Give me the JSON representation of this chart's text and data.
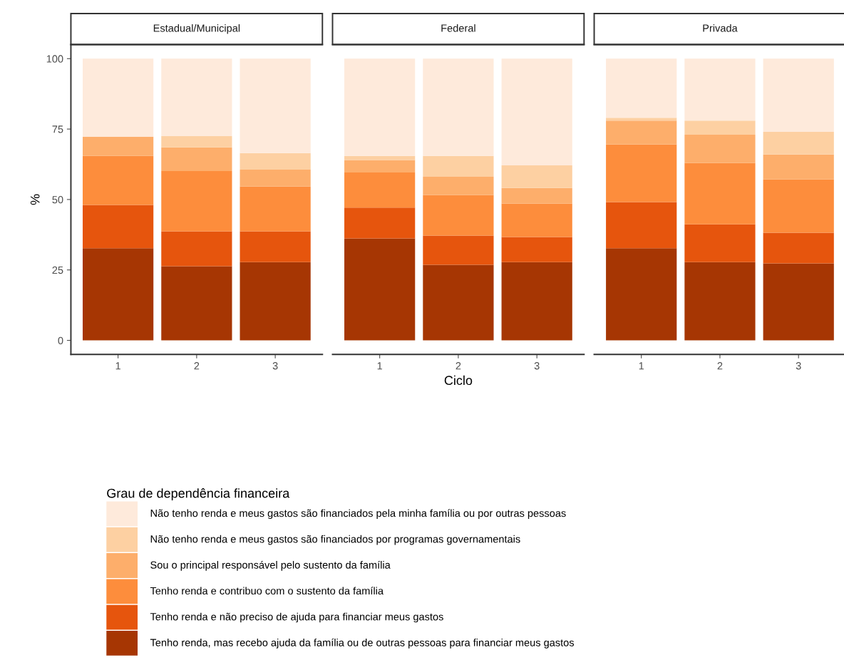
{
  "chart_data": [
    {
      "type": "bar",
      "title": "Estadual/Municipal",
      "ylabel": "%",
      "categories": [
        "1",
        "2",
        "3"
      ],
      "stacked": true,
      "ylim": [
        -5,
        105
      ],
      "yticks": [
        0,
        25,
        50,
        75,
        100
      ],
      "grid": false,
      "legend": "bottom",
      "legend_title": "Grau de dependência financeira",
      "series": [
        {
          "name": "Tenho renda, mas recebo ajuda da família ou de outras pessoas para financiar meus gastos",
          "color": "#a63603",
          "values": [
            32.7,
            26.3,
            27.8
          ]
        },
        {
          "name": "Tenho renda e não preciso de ajuda para financiar meus gastos",
          "color": "#e6550d",
          "values": [
            15.4,
            12.4,
            10.9
          ]
        },
        {
          "name": "Tenho renda e contribuo com o sustento da família",
          "color": "#fd8d3c",
          "values": [
            17.4,
            21.4,
            15.9
          ]
        },
        {
          "name": "Sou o principal responsável pelo sustento da família",
          "color": "#fdae6b",
          "values": [
            6.8,
            8.4,
            6.0
          ]
        },
        {
          "name": "Não tenho renda e meus gastos são financiados por programas governamentais",
          "color": "#fdd0a2",
          "values": [
            0.0,
            4.0,
            5.9
          ]
        },
        {
          "name": "Não tenho renda e meus gastos são financiados pela minha família ou por outras pessoas",
          "color": "#feeadb",
          "values": [
            27.7,
            27.5,
            33.5
          ]
        }
      ]
    },
    {
      "type": "bar",
      "title": "Federal",
      "xlabel": "Ciclo",
      "categories": [
        "1",
        "2",
        "3"
      ],
      "stacked": true,
      "ylim": [
        -5,
        105
      ],
      "yticks": [
        0,
        25,
        50,
        75,
        100
      ],
      "grid": false,
      "tick_labels": "x",
      "series": [
        {
          "name": "Tenho renda, mas recebo ajuda da família ou de outras pessoas para financiar meus gastos",
          "color": "#a63603",
          "values": [
            36.2,
            26.8,
            27.8
          ]
        },
        {
          "name": "Tenho renda e não preciso de ajuda para financiar meus gastos",
          "color": "#e6550d",
          "values": [
            10.9,
            10.4,
            8.9
          ]
        },
        {
          "name": "Tenho renda e contribuo com o sustento da família",
          "color": "#fd8d3c",
          "values": [
            12.5,
            14.4,
            11.9
          ]
        },
        {
          "name": "Sou o principal responsável pelo sustento da família",
          "color": "#fdae6b",
          "values": [
            4.4,
            6.5,
            5.5
          ]
        },
        {
          "name": "Não tenho renda e meus gastos são financiados por programas governamentais",
          "color": "#fdd0a2",
          "values": [
            1.5,
            7.4,
            8.0
          ]
        },
        {
          "name": "Não tenho renda e meus gastos são financiados pela minha família ou por outras pessoas",
          "color": "#feeadb",
          "values": [
            34.5,
            34.5,
            37.9
          ]
        }
      ]
    },
    {
      "type": "bar",
      "title": "Privada",
      "categories": [
        "1",
        "2",
        "3"
      ],
      "stacked": true,
      "ylim": [
        -5,
        105
      ],
      "yticks": [
        0,
        25,
        50,
        75,
        100
      ],
      "grid": false,
      "tick_labels": "x",
      "series": [
        {
          "name": "Tenho renda, mas recebo ajuda da família ou de outras pessoas para financiar meus gastos",
          "color": "#a63603",
          "values": [
            32.7,
            27.8,
            27.3
          ]
        },
        {
          "name": "Tenho renda e não preciso de ajuda para financiar meus gastos",
          "color": "#e6550d",
          "values": [
            16.4,
            13.4,
            10.9
          ]
        },
        {
          "name": "Tenho renda e contribuo com o sustento da família",
          "color": "#fd8d3c",
          "values": [
            20.4,
            21.8,
            18.9
          ]
        },
        {
          "name": "Sou o principal responsável pelo sustento da família",
          "color": "#fdae6b",
          "values": [
            8.5,
            10.0,
            8.9
          ]
        },
        {
          "name": "Não tenho renda e meus gastos são financiados por programas governamentais",
          "color": "#fdd0a2",
          "values": [
            1.0,
            5.0,
            8.0
          ]
        },
        {
          "name": "Não tenho renda e meus gastos são financiados pela minha família ou por outras pessoas",
          "color": "#feeadb",
          "values": [
            21.0,
            22.0,
            26.0
          ]
        }
      ]
    }
  ]
}
